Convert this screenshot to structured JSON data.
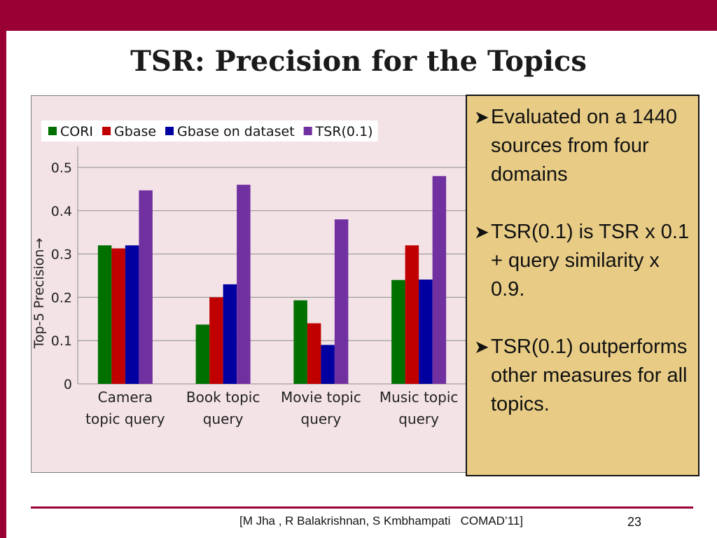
{
  "slide": {
    "title": "TSR: Precision for the Topics",
    "citation": "[M Jha , R Balakrishnan, S Kmbhampati   COMAD’11]",
    "page_number": "23",
    "accent_color": "#990033"
  },
  "callout": {
    "background": "#e8cc86",
    "bullet_icon": "arrowhead-bullet-icon",
    "bullets": [
      "Evaluated on a 1440 sources from four domains",
      "TSR(0.1) is TSR x 0.1 + query similarity x 0.9.",
      "TSR(0.1) outperforms other measures for all topics."
    ]
  },
  "chart_data": {
    "type": "bar",
    "title": "",
    "xlabel": "",
    "ylabel": "Top-5 Precision→",
    "ylim": [
      0,
      0.5
    ],
    "yticks": [
      "0",
      "0.1",
      "0.2",
      "0.3",
      "0.4",
      "0.5"
    ],
    "grid": true,
    "legend_position": "top",
    "categories": [
      [
        "Camera",
        "topic query"
      ],
      [
        "Book topic",
        "query"
      ],
      [
        "Movie topic",
        "query"
      ],
      [
        "Music topic",
        "query"
      ]
    ],
    "series": [
      {
        "name": "CORI",
        "color": "#007000",
        "values": [
          0.32,
          0.137,
          0.193,
          0.24
        ]
      },
      {
        "name": "Gbase",
        "color": "#c00000",
        "values": [
          0.313,
          0.2,
          0.14,
          0.32
        ]
      },
      {
        "name": "Gbase on dataset",
        "color": "#0000a0",
        "values": [
          0.32,
          0.23,
          0.09,
          0.241
        ]
      },
      {
        "name": "TSR(0.1)",
        "color": "#7030a0",
        "values": [
          0.447,
          0.46,
          0.38,
          0.48
        ]
      }
    ]
  }
}
